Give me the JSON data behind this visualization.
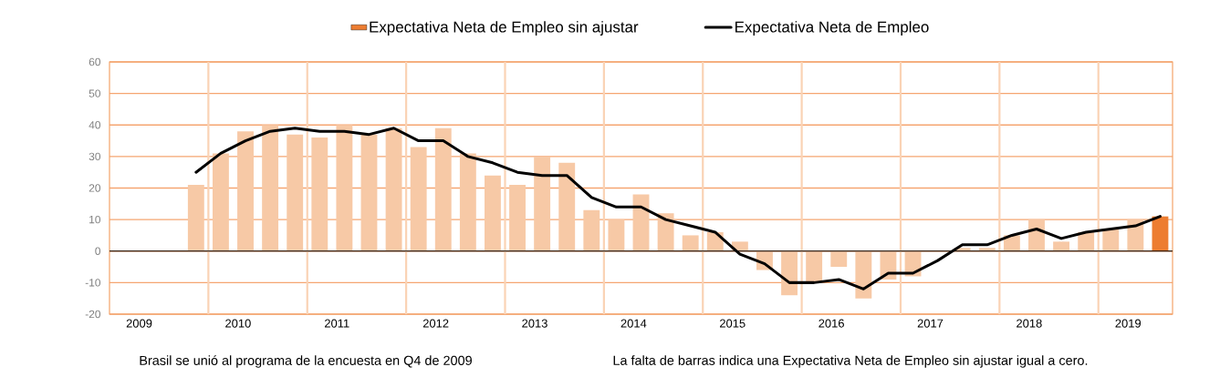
{
  "chart_data": {
    "type": "bar",
    "x": [
      2009.875,
      2010.125,
      2010.375,
      2010.625,
      2010.875,
      2011.125,
      2011.375,
      2011.625,
      2011.875,
      2012.125,
      2012.375,
      2012.625,
      2012.875,
      2013.125,
      2013.375,
      2013.625,
      2013.875,
      2014.125,
      2014.375,
      2014.625,
      2014.875,
      2015.125,
      2015.375,
      2015.625,
      2015.875,
      2016.125,
      2016.375,
      2016.625,
      2016.875,
      2017.125,
      2017.375,
      2017.625,
      2017.875,
      2018.125,
      2018.375,
      2018.625,
      2018.875,
      2019.125,
      2019.375,
      2019.625
    ],
    "series": [
      {
        "name": "Expectativa Neta de Empleo sin ajustar",
        "color": "#ed7d31",
        "colors": [
          "#f7c9a6",
          "#f7c9a6",
          "#f7c9a6",
          "#f7c9a6",
          "#f7c9a6",
          "#f7c9a6",
          "#f7c9a6",
          "#f7c9a6",
          "#f7c9a6",
          "#f7c9a6",
          "#f7c9a6",
          "#f7c9a6",
          "#f7c9a6",
          "#f7c9a6",
          "#f7c9a6",
          "#f7c9a6",
          "#f7c9a6",
          "#f7c9a6",
          "#f7c9a6",
          "#f7c9a6",
          "#f7c9a6",
          "#f7c9a6",
          "#f7c9a6",
          "#f7c9a6",
          "#f7c9a6",
          "#f7c9a6",
          "#f7c9a6",
          "#f7c9a6",
          "#f7c9a6",
          "#f7c9a6",
          "#f7c9a6",
          "#f7c9a6",
          "#f7c9a6",
          "#f7c9a6",
          "#f7c9a6",
          "#f7c9a6",
          "#f7c9a6",
          "#f7c9a6",
          "#f7c9a6",
          "#ed7d31"
        ],
        "values": [
          21,
          31,
          38,
          40,
          37,
          36,
          40,
          37,
          39,
          33,
          39,
          31,
          24,
          21,
          30,
          28,
          13,
          10,
          18,
          12,
          5,
          6,
          3,
          -6,
          -14,
          -10,
          -5,
          -15,
          -9,
          -8,
          0,
          1,
          1,
          5,
          10,
          3,
          6,
          7,
          10,
          11
        ]
      },
      {
        "name": "Expectativa Neta de Empleo",
        "type": "line",
        "color": "#000000",
        "values": [
          25,
          31,
          35,
          38,
          39,
          38,
          38,
          37,
          39,
          35,
          35,
          30,
          28,
          25,
          24,
          24,
          17,
          14,
          14,
          10,
          8,
          6,
          -1,
          -4,
          -10,
          -10,
          -9,
          -12,
          -7,
          -7,
          -3,
          2,
          2,
          5,
          7,
          4,
          6,
          7,
          8,
          11
        ]
      }
    ],
    "xlim": [
      2009,
      2019.75
    ],
    "xticks": [
      {
        "value": 2009.3,
        "label": "2009"
      },
      {
        "value": 2010.3,
        "label": "2010"
      },
      {
        "value": 2011.3,
        "label": "2011"
      },
      {
        "value": 2012.3,
        "label": "2012"
      },
      {
        "value": 2013.3,
        "label": "2013"
      },
      {
        "value": 2014.3,
        "label": "2014"
      },
      {
        "value": 2015.3,
        "label": "2015"
      },
      {
        "value": 2016.3,
        "label": "2016"
      },
      {
        "value": 2017.3,
        "label": "2017"
      },
      {
        "value": 2018.3,
        "label": "2018"
      },
      {
        "value": 2019.3,
        "label": "2019"
      },
      {
        "value": 2010,
        "label": null
      },
      {
        "value": 2011,
        "label": null
      },
      {
        "value": 2012,
        "label": null
      },
      {
        "value": 2013,
        "label": null
      },
      {
        "value": 2014,
        "label": null
      },
      {
        "value": 2015,
        "label": null
      },
      {
        "value": 2016,
        "label": null
      },
      {
        "value": 2017,
        "label": null
      },
      {
        "value": 2018,
        "label": null
      },
      {
        "value": 2019,
        "label": null
      }
    ],
    "ylim": [
      -20,
      60
    ],
    "yticks": [
      -20,
      -10,
      0,
      10,
      20,
      30,
      40,
      50,
      60
    ],
    "grid": true,
    "legend": "top",
    "ref_lines": [
      {
        "axis": "y",
        "value": 0,
        "color": "#000000"
      }
    ],
    "annotations": [
      "Brasil se unió al programa de la encuesta en Q4 de 2009",
      "La falta de barras indica una Expectativa Neta de Empleo sin ajustar igual a cero."
    ]
  }
}
